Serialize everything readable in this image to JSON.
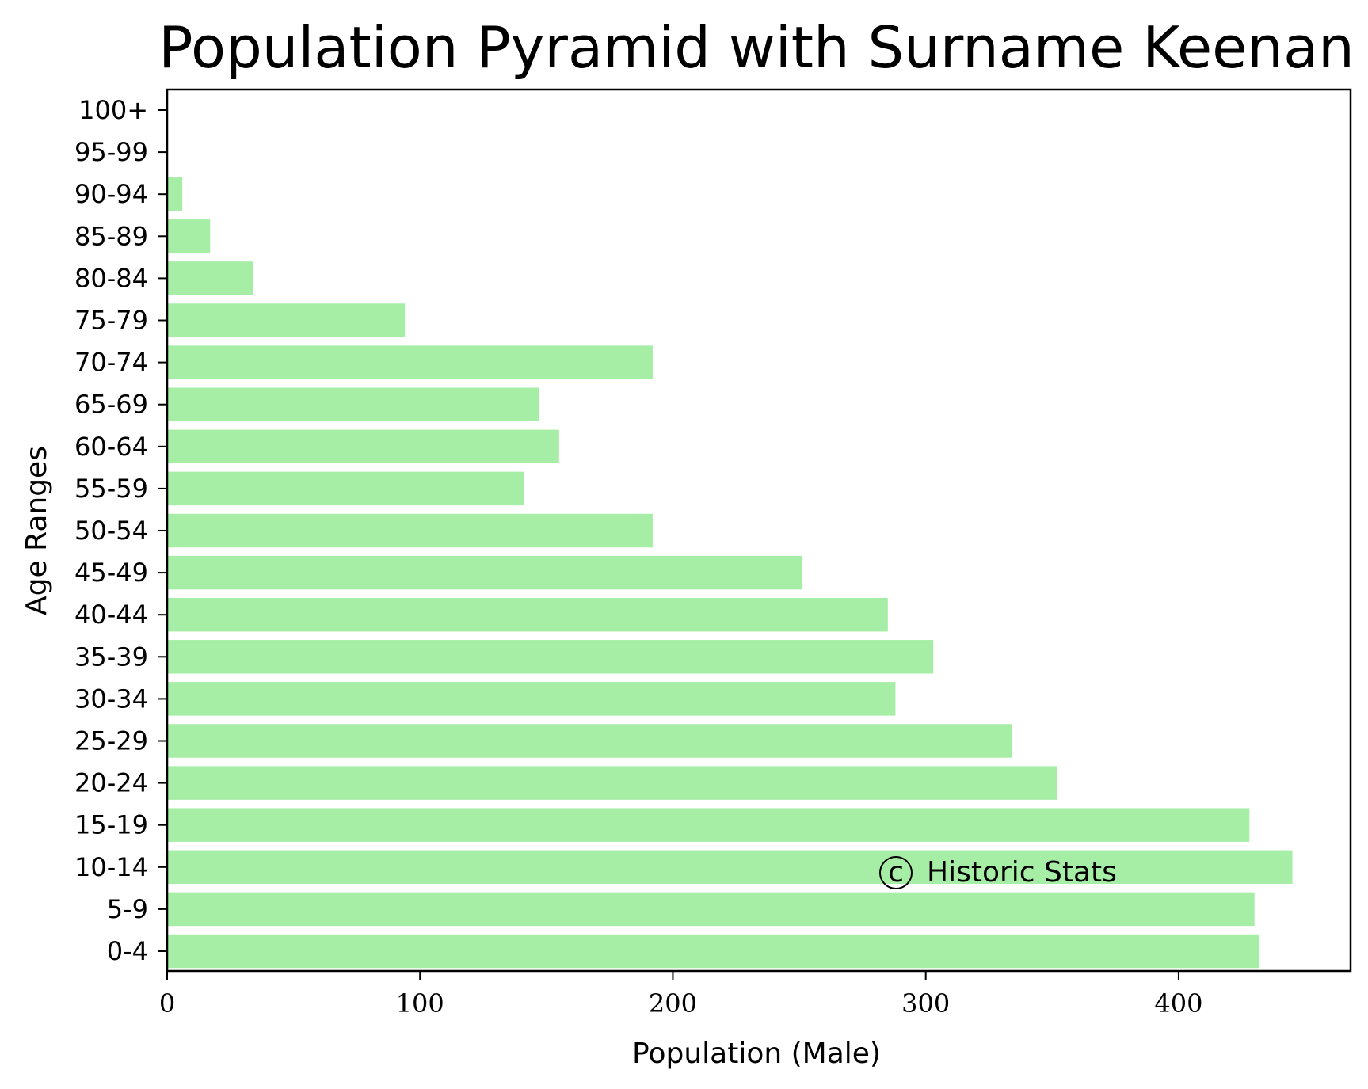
{
  "chart_data": {
    "type": "bar",
    "orientation": "horizontal",
    "title": "Population Pyramid with Surname Keenan",
    "xlabel": "Population (Male)",
    "ylabel": "Age Ranges",
    "categories": [
      "0-4",
      "5-9",
      "10-14",
      "15-19",
      "20-24",
      "25-29",
      "30-34",
      "35-39",
      "40-44",
      "45-49",
      "50-54",
      "55-59",
      "60-64",
      "65-69",
      "70-74",
      "75-79",
      "80-84",
      "85-89",
      "90-94",
      "95-99",
      "100+"
    ],
    "values": [
      432,
      430,
      445,
      428,
      352,
      334,
      288,
      303,
      285,
      251,
      192,
      141,
      155,
      147,
      192,
      94,
      34,
      17,
      6,
      0,
      0
    ],
    "xticks": [
      0,
      100,
      200,
      300,
      400
    ],
    "xlim": [
      0,
      468
    ],
    "bar_color": "#a6eea6",
    "grid": false,
    "annotation": "Historic Stats",
    "annotation_symbol": "c"
  }
}
